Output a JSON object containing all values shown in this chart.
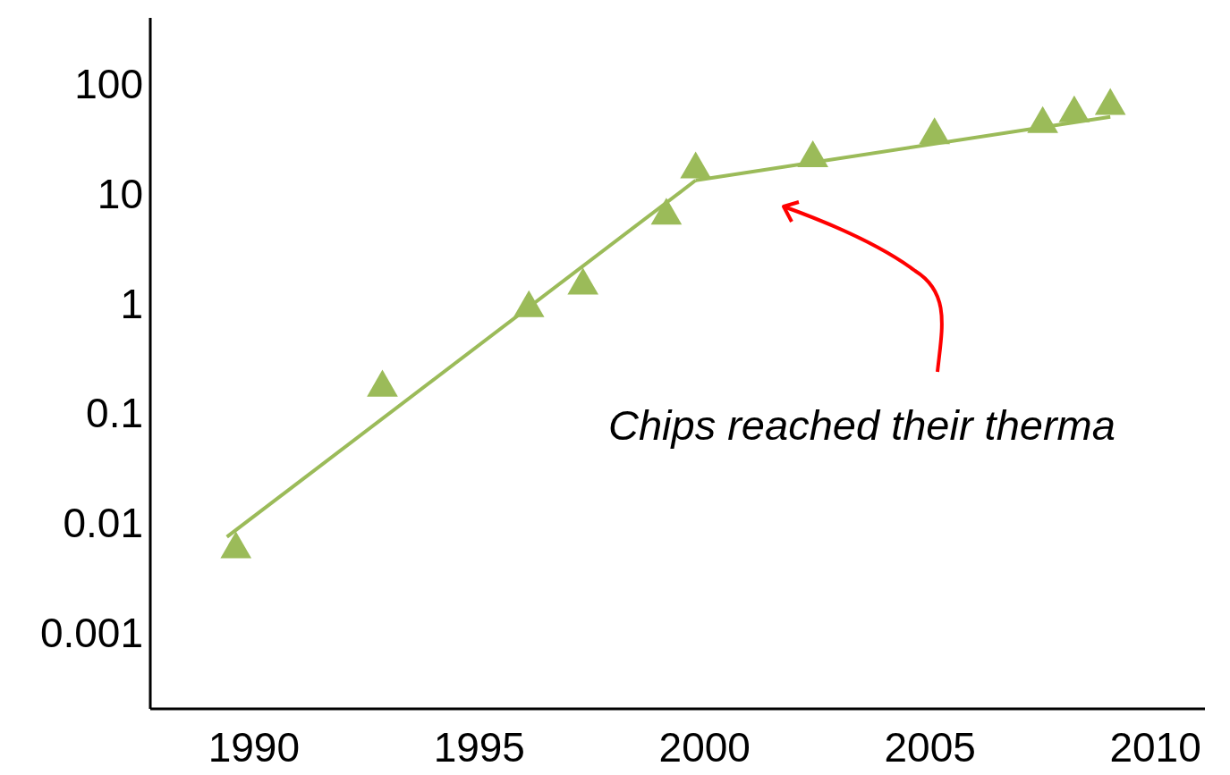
{
  "chart_data": {
    "type": "scatter",
    "log": "y",
    "grid": false,
    "legend": false,
    "xlim": [
      1987.7,
      2011.1
    ],
    "xticks": [
      1990,
      1995,
      2000,
      2005,
      2010
    ],
    "ylim": [
      0.0002,
      400
    ],
    "yticks": [
      0.001,
      0.01,
      0.1,
      1,
      10,
      100
    ],
    "series": [
      {
        "color": "#9bbb59",
        "marker": "triangle",
        "x": [
          1989.6,
          1992.85,
          1996.1,
          1997.3,
          1999.15,
          1999.8,
          2002.4,
          2005.1,
          2007.5,
          2008.2,
          2009.0
        ],
        "values": [
          0.0057,
          0.17,
          0.9,
          1.45,
          6.3,
          16.6,
          21,
          34,
          43,
          54,
          63
        ]
      },
      {
        "type": "line",
        "color": "#9bbb59",
        "marker": "none",
        "line_style": "solid",
        "x": [
          1989.4,
          1999.8
        ],
        "values": [
          0.0074,
          13.2
        ]
      },
      {
        "type": "line",
        "color": "#9bbb59",
        "marker": "none",
        "line_style": "solid",
        "x": [
          1999.8,
          2009.0
        ],
        "values": [
          13.2,
          50
        ]
      }
    ],
    "annotations": [
      "Chips reached their therma"
    ]
  }
}
